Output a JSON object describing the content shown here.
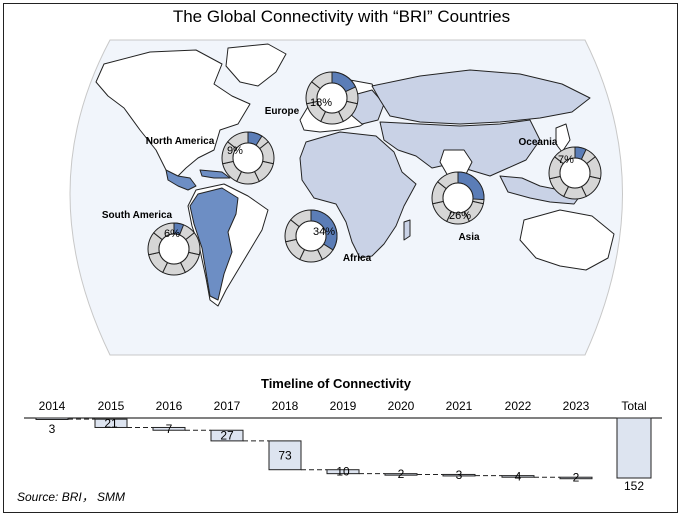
{
  "title": "The Global Connectivity with “BRI” Countries",
  "source": "Source: BRI， SMM",
  "colors": {
    "land": "#ffffff",
    "ocean": "#f1f5fb",
    "bri_light": "#c9d2e6",
    "bri_dark": "#6d8ec4",
    "donut_fill": "#d6d6d6",
    "donut_share": "#5b7db7",
    "waterfall_box": "#dde4f0"
  },
  "map": {
    "regions": [
      {
        "name": "Europe",
        "percent": "18%"
      },
      {
        "name": "North America",
        "percent": "9%"
      },
      {
        "name": "Oceania",
        "percent": "7%"
      },
      {
        "name": "South America",
        "percent": "6%"
      },
      {
        "name": "Africa",
        "percent": "34%"
      },
      {
        "name": "Asia",
        "percent": "26%"
      }
    ]
  },
  "chart_data": {
    "type": "bar",
    "subtype": "waterfall",
    "title": "Timeline of Connectivity",
    "categories": [
      "2014",
      "2015",
      "2016",
      "2017",
      "2018",
      "2019",
      "2020",
      "2021",
      "2022",
      "2023",
      "Total"
    ],
    "values": [
      3,
      21,
      7,
      27,
      73,
      10,
      2,
      3,
      4,
      2,
      152
    ],
    "value_labels": [
      "3",
      "21",
      "7",
      "27",
      "73",
      "10",
      "2",
      "3",
      "4",
      "2",
      "152"
    ],
    "ylim": [
      0,
      152
    ],
    "grid": false,
    "legend": "none"
  }
}
